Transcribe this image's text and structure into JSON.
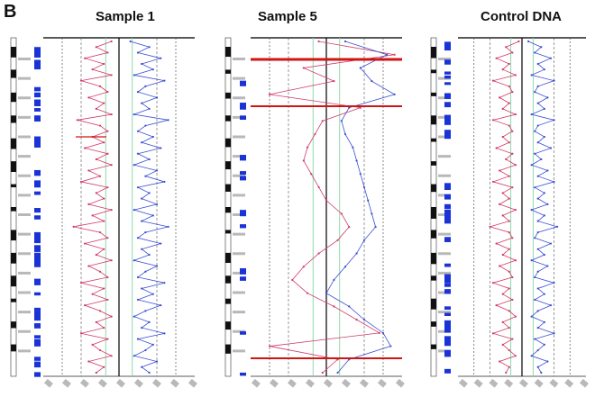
{
  "figure": {
    "panel_label": "B",
    "titles": [
      "Sample 1",
      "Sample 5",
      "Control DNA"
    ]
  },
  "colors": {
    "left_trace": "#d23a6a",
    "right_trace": "#3a4fd2",
    "band_blue": "#1a33d6",
    "ideogram": "#111111",
    "axis": "#222222",
    "center_line": "#000000",
    "grid_green": "#8fd8b0",
    "grid_dotted": "#555555",
    "highlight_red": "#d01515"
  },
  "chart_data": [
    {
      "type": "line",
      "title": "Sample 1",
      "orientation": "vertical",
      "xlim": [
        -2,
        2
      ],
      "series": [
        {
          "color": "#d23a6a",
          "x": [
            -0.2,
            -0.6,
            -0.3,
            -0.9,
            -0.4,
            -0.7,
            -0.2,
            -1.0,
            -0.5,
            -0.3,
            -0.8,
            -0.4,
            -0.6,
            -0.2,
            -1.1,
            -0.5,
            -0.3,
            -0.7,
            -0.4,
            -0.9,
            -0.3,
            -0.6,
            -0.2,
            -0.8,
            -0.5,
            -1.0,
            -0.3,
            -0.6,
            -0.4,
            -0.8,
            -0.2,
            -0.7,
            -0.4,
            -1.2,
            -0.5,
            -0.3,
            -0.9,
            -0.4,
            -0.6,
            -0.2,
            -0.8,
            -0.5,
            -0.3,
            -1.0,
            -0.4,
            -0.7,
            -0.3,
            -0.9,
            -0.5,
            -0.2,
            -0.6,
            -0.4,
            -1.0,
            -0.3,
            -0.7,
            -0.5,
            -0.2,
            -0.8,
            -0.4,
            -0.6
          ]
        },
        {
          "color": "#3a4fd2",
          "x": [
            0.3,
            0.8,
            0.5,
            1.1,
            0.6,
            0.9,
            0.4,
            1.2,
            0.7,
            0.5,
            1.0,
            0.6,
            0.8,
            0.4,
            1.3,
            0.7,
            0.5,
            0.9,
            0.6,
            1.1,
            0.5,
            0.8,
            0.4,
            1.0,
            0.7,
            1.2,
            0.5,
            0.8,
            0.6,
            1.0,
            0.4,
            0.9,
            0.6,
            1.3,
            0.7,
            0.5,
            1.1,
            0.6,
            0.8,
            0.4,
            1.0,
            0.7,
            0.5,
            1.2,
            0.6,
            0.9,
            0.5,
            1.1,
            0.7,
            0.4,
            0.8,
            0.6,
            1.2,
            0.5,
            0.9,
            0.7,
            0.4,
            1.0,
            0.6,
            0.8
          ]
        }
      ],
      "grid": true
    },
    {
      "type": "line",
      "title": "Sample 5",
      "orientation": "vertical",
      "xlim": [
        -2,
        2
      ],
      "series": [
        {
          "color": "#d23a6a",
          "x": [
            -0.2,
            1.8,
            -0.6,
            0.2,
            -1.5,
            0.9,
            -0.1,
            -0.3,
            -0.5,
            -0.6,
            -0.4,
            -0.2,
            0.0,
            0.4,
            0.6,
            0.3,
            -0.2,
            -0.6,
            -0.9,
            -0.5,
            0.2,
            0.8,
            1.4,
            -1.5,
            0.3,
            -0.1
          ]
        },
        {
          "color": "#3a4fd2",
          "x": [
            0.5,
            1.6,
            0.9,
            1.2,
            1.8,
            0.6,
            0.4,
            0.5,
            0.7,
            0.8,
            0.9,
            1.0,
            1.1,
            1.2,
            1.3,
            1.0,
            0.8,
            0.5,
            0.2,
            0.0,
            0.6,
            1.0,
            1.5,
            1.7,
            0.6,
            0.3
          ]
        }
      ],
      "grid": true
    },
    {
      "type": "line",
      "title": "Control DNA",
      "orientation": "vertical",
      "xlim": [
        -2,
        2
      ],
      "series": [
        {
          "color": "#d23a6a",
          "x": [
            -0.1,
            -0.5,
            -0.3,
            -0.8,
            -0.4,
            -0.6,
            -0.2,
            -0.9,
            -0.4,
            -0.3,
            -0.7,
            -0.4,
            -0.6,
            -0.2,
            -0.9,
            -0.4,
            -0.3,
            -0.6,
            -0.4,
            -0.8,
            -0.3,
            -0.5,
            -0.2,
            -0.7,
            -0.4,
            -0.9,
            -0.3,
            -0.6,
            -0.4,
            -0.7,
            -0.2,
            -0.6,
            -0.4,
            -1.0,
            -0.4,
            -0.3,
            -0.8,
            -0.4,
            -0.6,
            -0.2,
            -0.7,
            -0.4,
            -0.3,
            -0.9,
            -0.4,
            -0.6,
            -0.3,
            -0.8,
            -0.4,
            -0.2,
            -0.6,
            -0.4,
            -0.9,
            -0.3,
            -0.6,
            -0.4,
            -0.2,
            -0.7,
            -0.4,
            -0.5
          ]
        },
        {
          "color": "#3a4fd2",
          "x": [
            0.2,
            0.6,
            0.4,
            0.9,
            0.5,
            0.7,
            0.3,
            1.0,
            0.5,
            0.4,
            0.8,
            0.5,
            0.7,
            0.3,
            1.0,
            0.5,
            0.4,
            0.7,
            0.5,
            0.9,
            0.4,
            0.6,
            0.3,
            0.8,
            0.5,
            1.0,
            0.4,
            0.7,
            0.5,
            0.8,
            0.3,
            0.7,
            0.5,
            1.1,
            0.5,
            0.4,
            0.9,
            0.5,
            0.7,
            0.3,
            0.8,
            0.5,
            0.4,
            1.0,
            0.5,
            0.7,
            0.4,
            0.9,
            0.5,
            0.3,
            0.7,
            0.5,
            1.0,
            0.4,
            0.7,
            0.5,
            0.3,
            0.8,
            0.5,
            0.6
          ]
        }
      ],
      "grid": true
    }
  ]
}
